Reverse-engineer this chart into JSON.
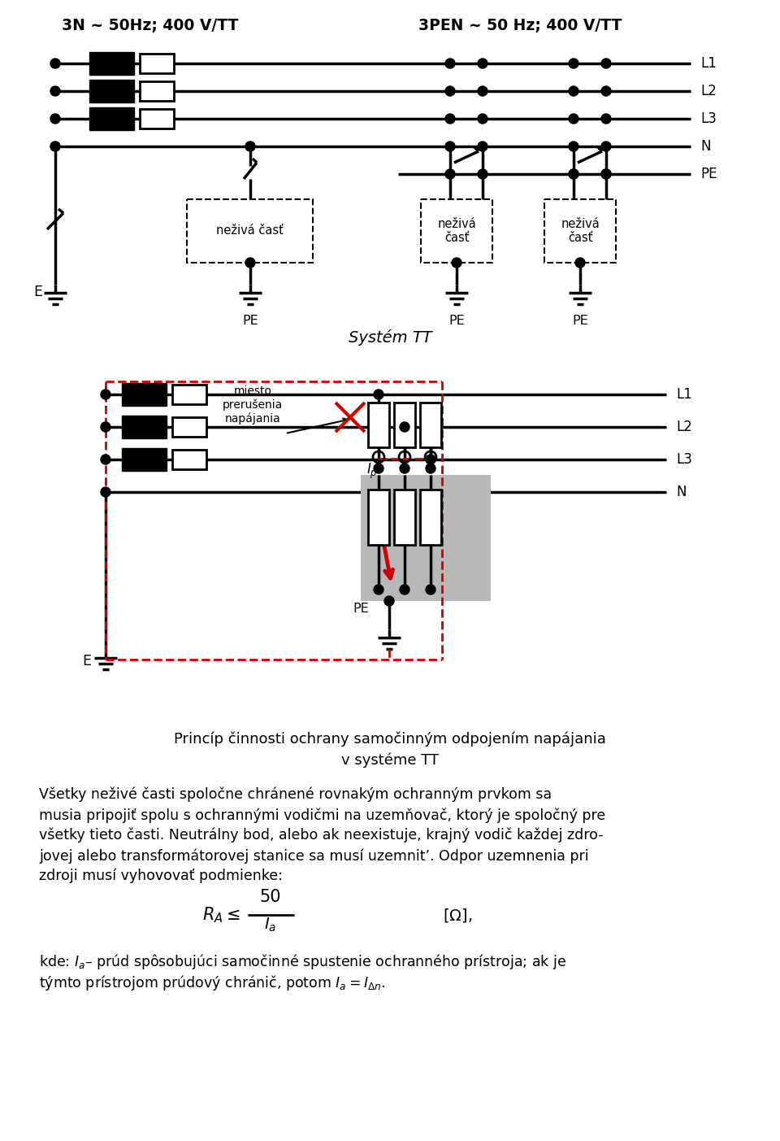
{
  "title1": "3N ~ 50Hz; 400 V/TT",
  "title2": "3PEN ~ 50 Hz; 400 V/TT",
  "system_label": "Systém TT",
  "principle_line1": "Princíp činnosti ochrany samočinným odpojením napájania",
  "principle_line2": "v systéme TT",
  "body_lines": [
    "Všetky neživé časti spoločne chránené rovnakým ochranným prvkom sa",
    "musia pripojiť spolu s ochrannými vodičmi na uzemňovač, ktorý je spoločný pre",
    "všetky tieto časti. Neutrálny bod, alebo ak neexistuje, krajný vodič každej zdro-",
    "jovej alebo transformátorovej stanice sa musí uzemnit’. Odpor uzemnenia pri",
    "zdroji musí vyhovovať podmienke:"
  ],
  "kde_line1": "kde: $I_a$– prúd spôsobujúci samočinné spustenie ochranného prístroja; ak je",
  "kde_line2": "týmto prístrojom prúdový chránič, potom $I_a = I_{\\Delta n}$.",
  "bg": "#ffffff",
  "lc": "#000000",
  "rc": "#cc0000",
  "gc": "#b8b8b8"
}
